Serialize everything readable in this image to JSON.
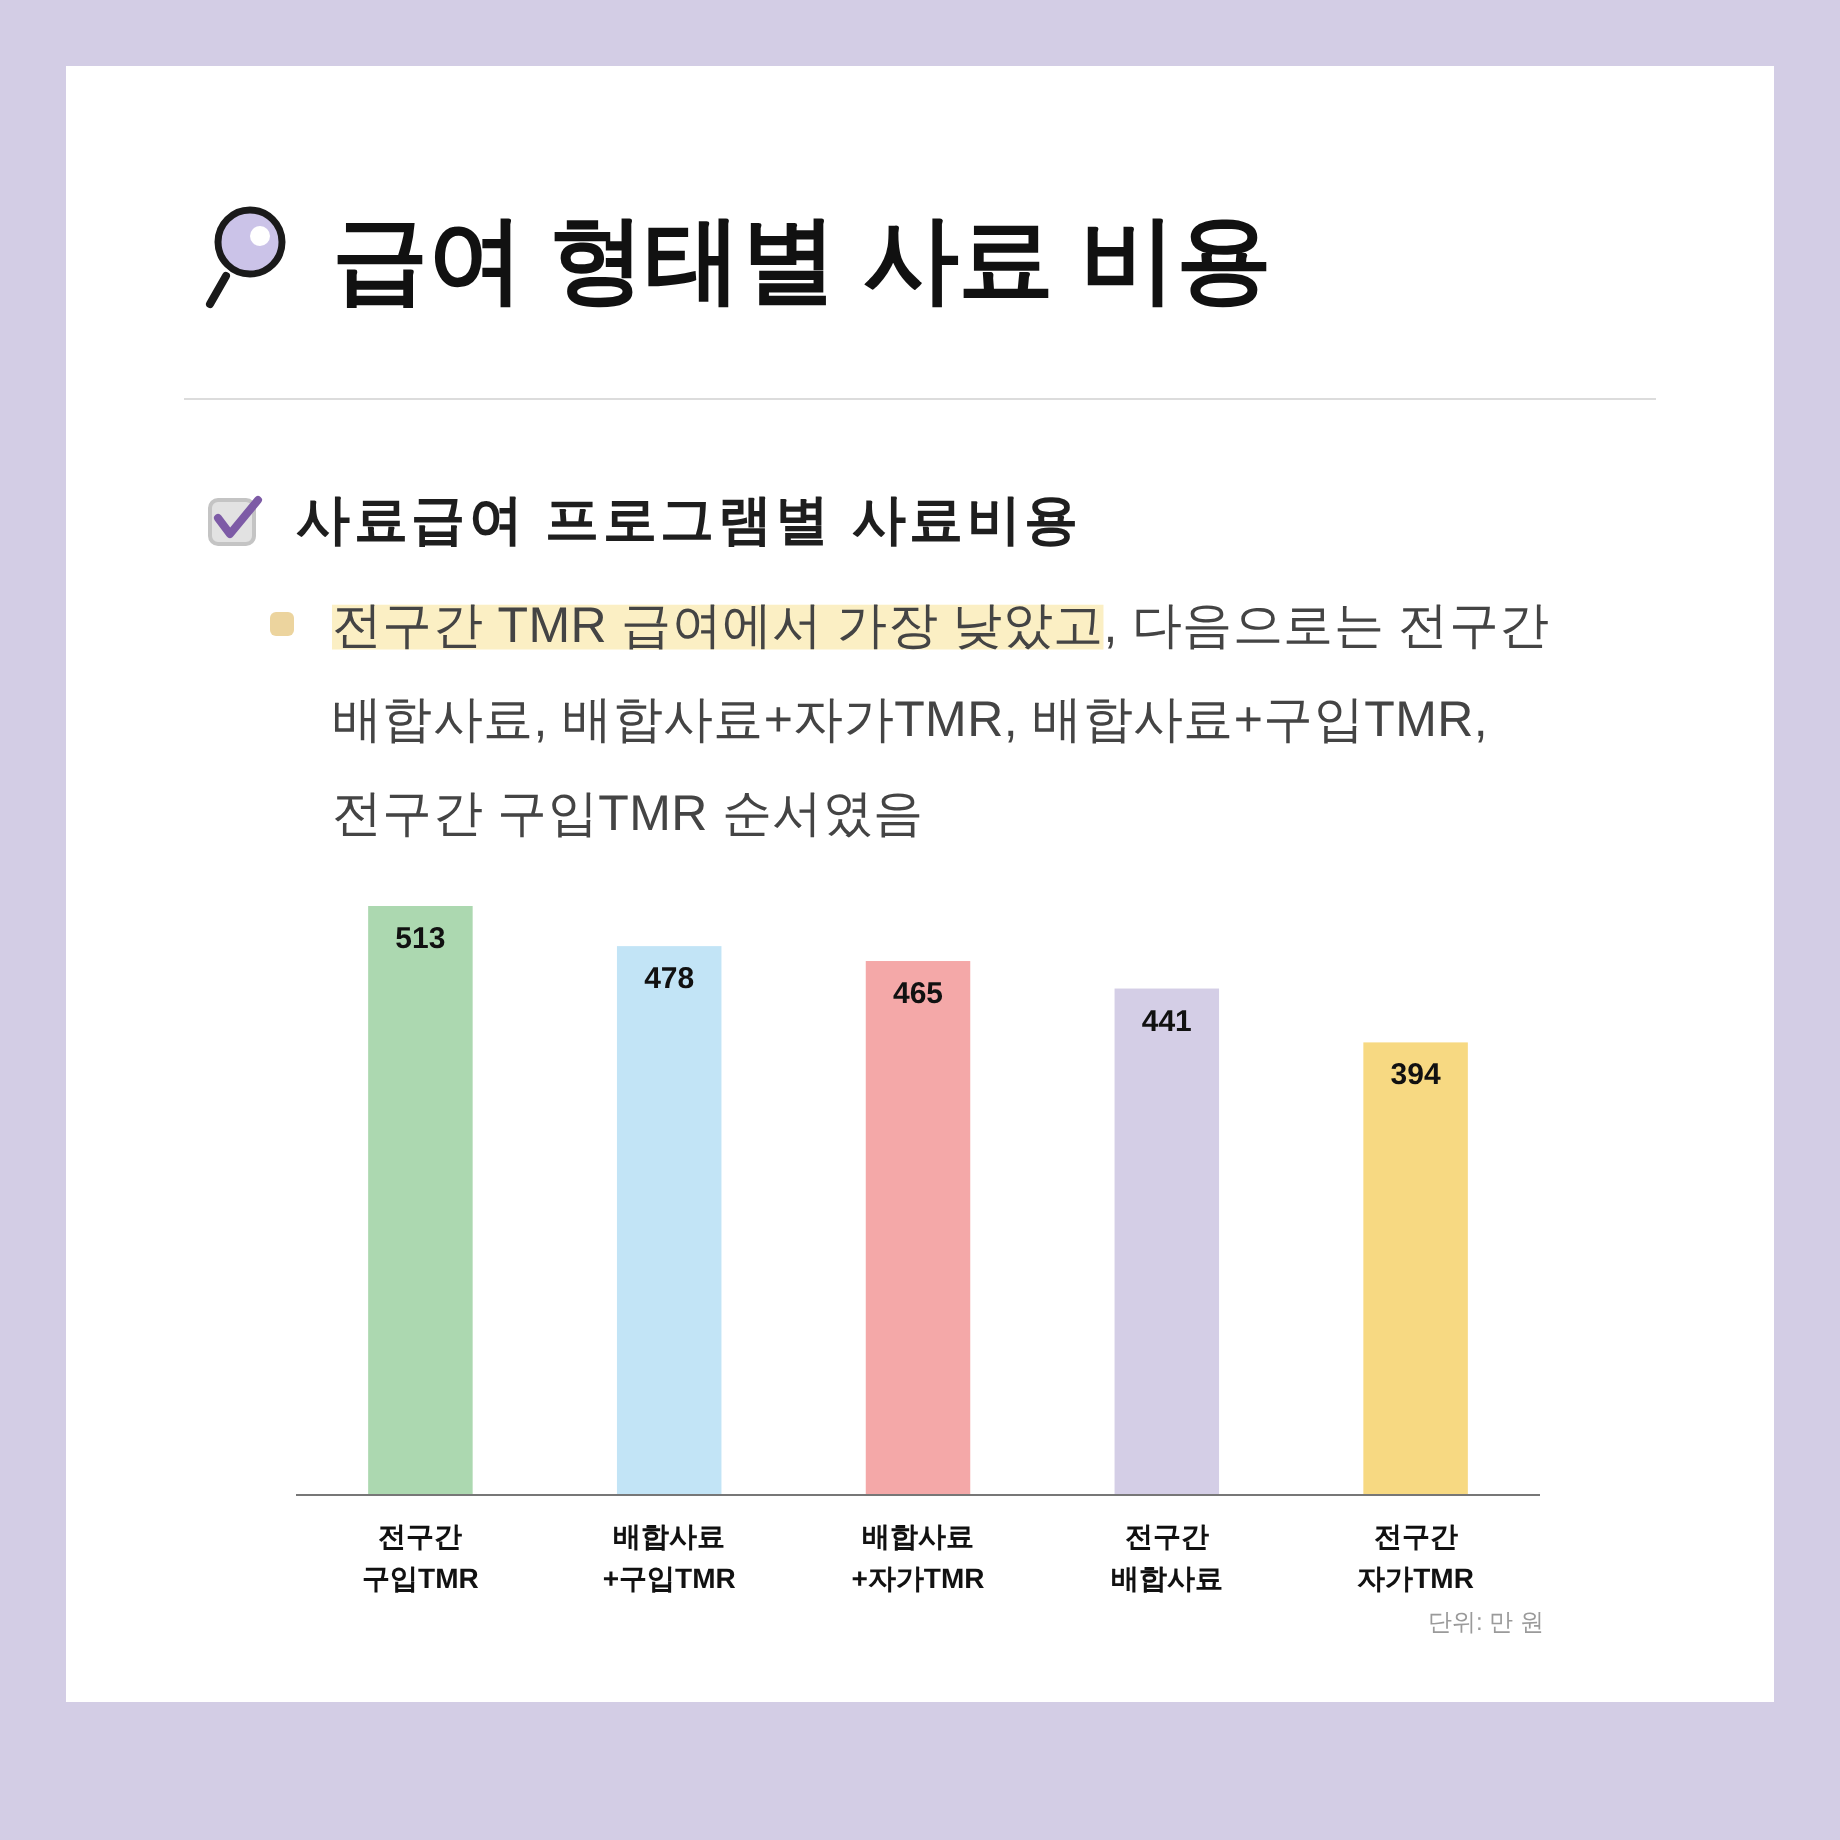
{
  "chart_data": {
    "type": "bar",
    "title": "급여 형태별 사료 비용",
    "subtitle": "사료급여 프로그램별 사료비용",
    "annotations": [
      "전구간 TMR 급여에서 가장 낮았고",
      ", 다음으로는 전구간 배합사료, 배합사료+자가TMR, 배합사료+구입TMR, 전구간 구입TMR 순서였음",
      "단위: 만 원"
    ],
    "categories": [
      "전구간 구입TMR",
      "배합사료 +구입TMR",
      "배합사료 +자가TMR",
      "전구간 배합사료",
      "전구간 자가TMR"
    ],
    "values": [
      513,
      478,
      465,
      441,
      394
    ],
    "colors": [
      "#acd8b0",
      "#c2e4f6",
      "#f4a8a8",
      "#d4cee6",
      "#f7d982"
    ],
    "data_labels": true
  }
}
